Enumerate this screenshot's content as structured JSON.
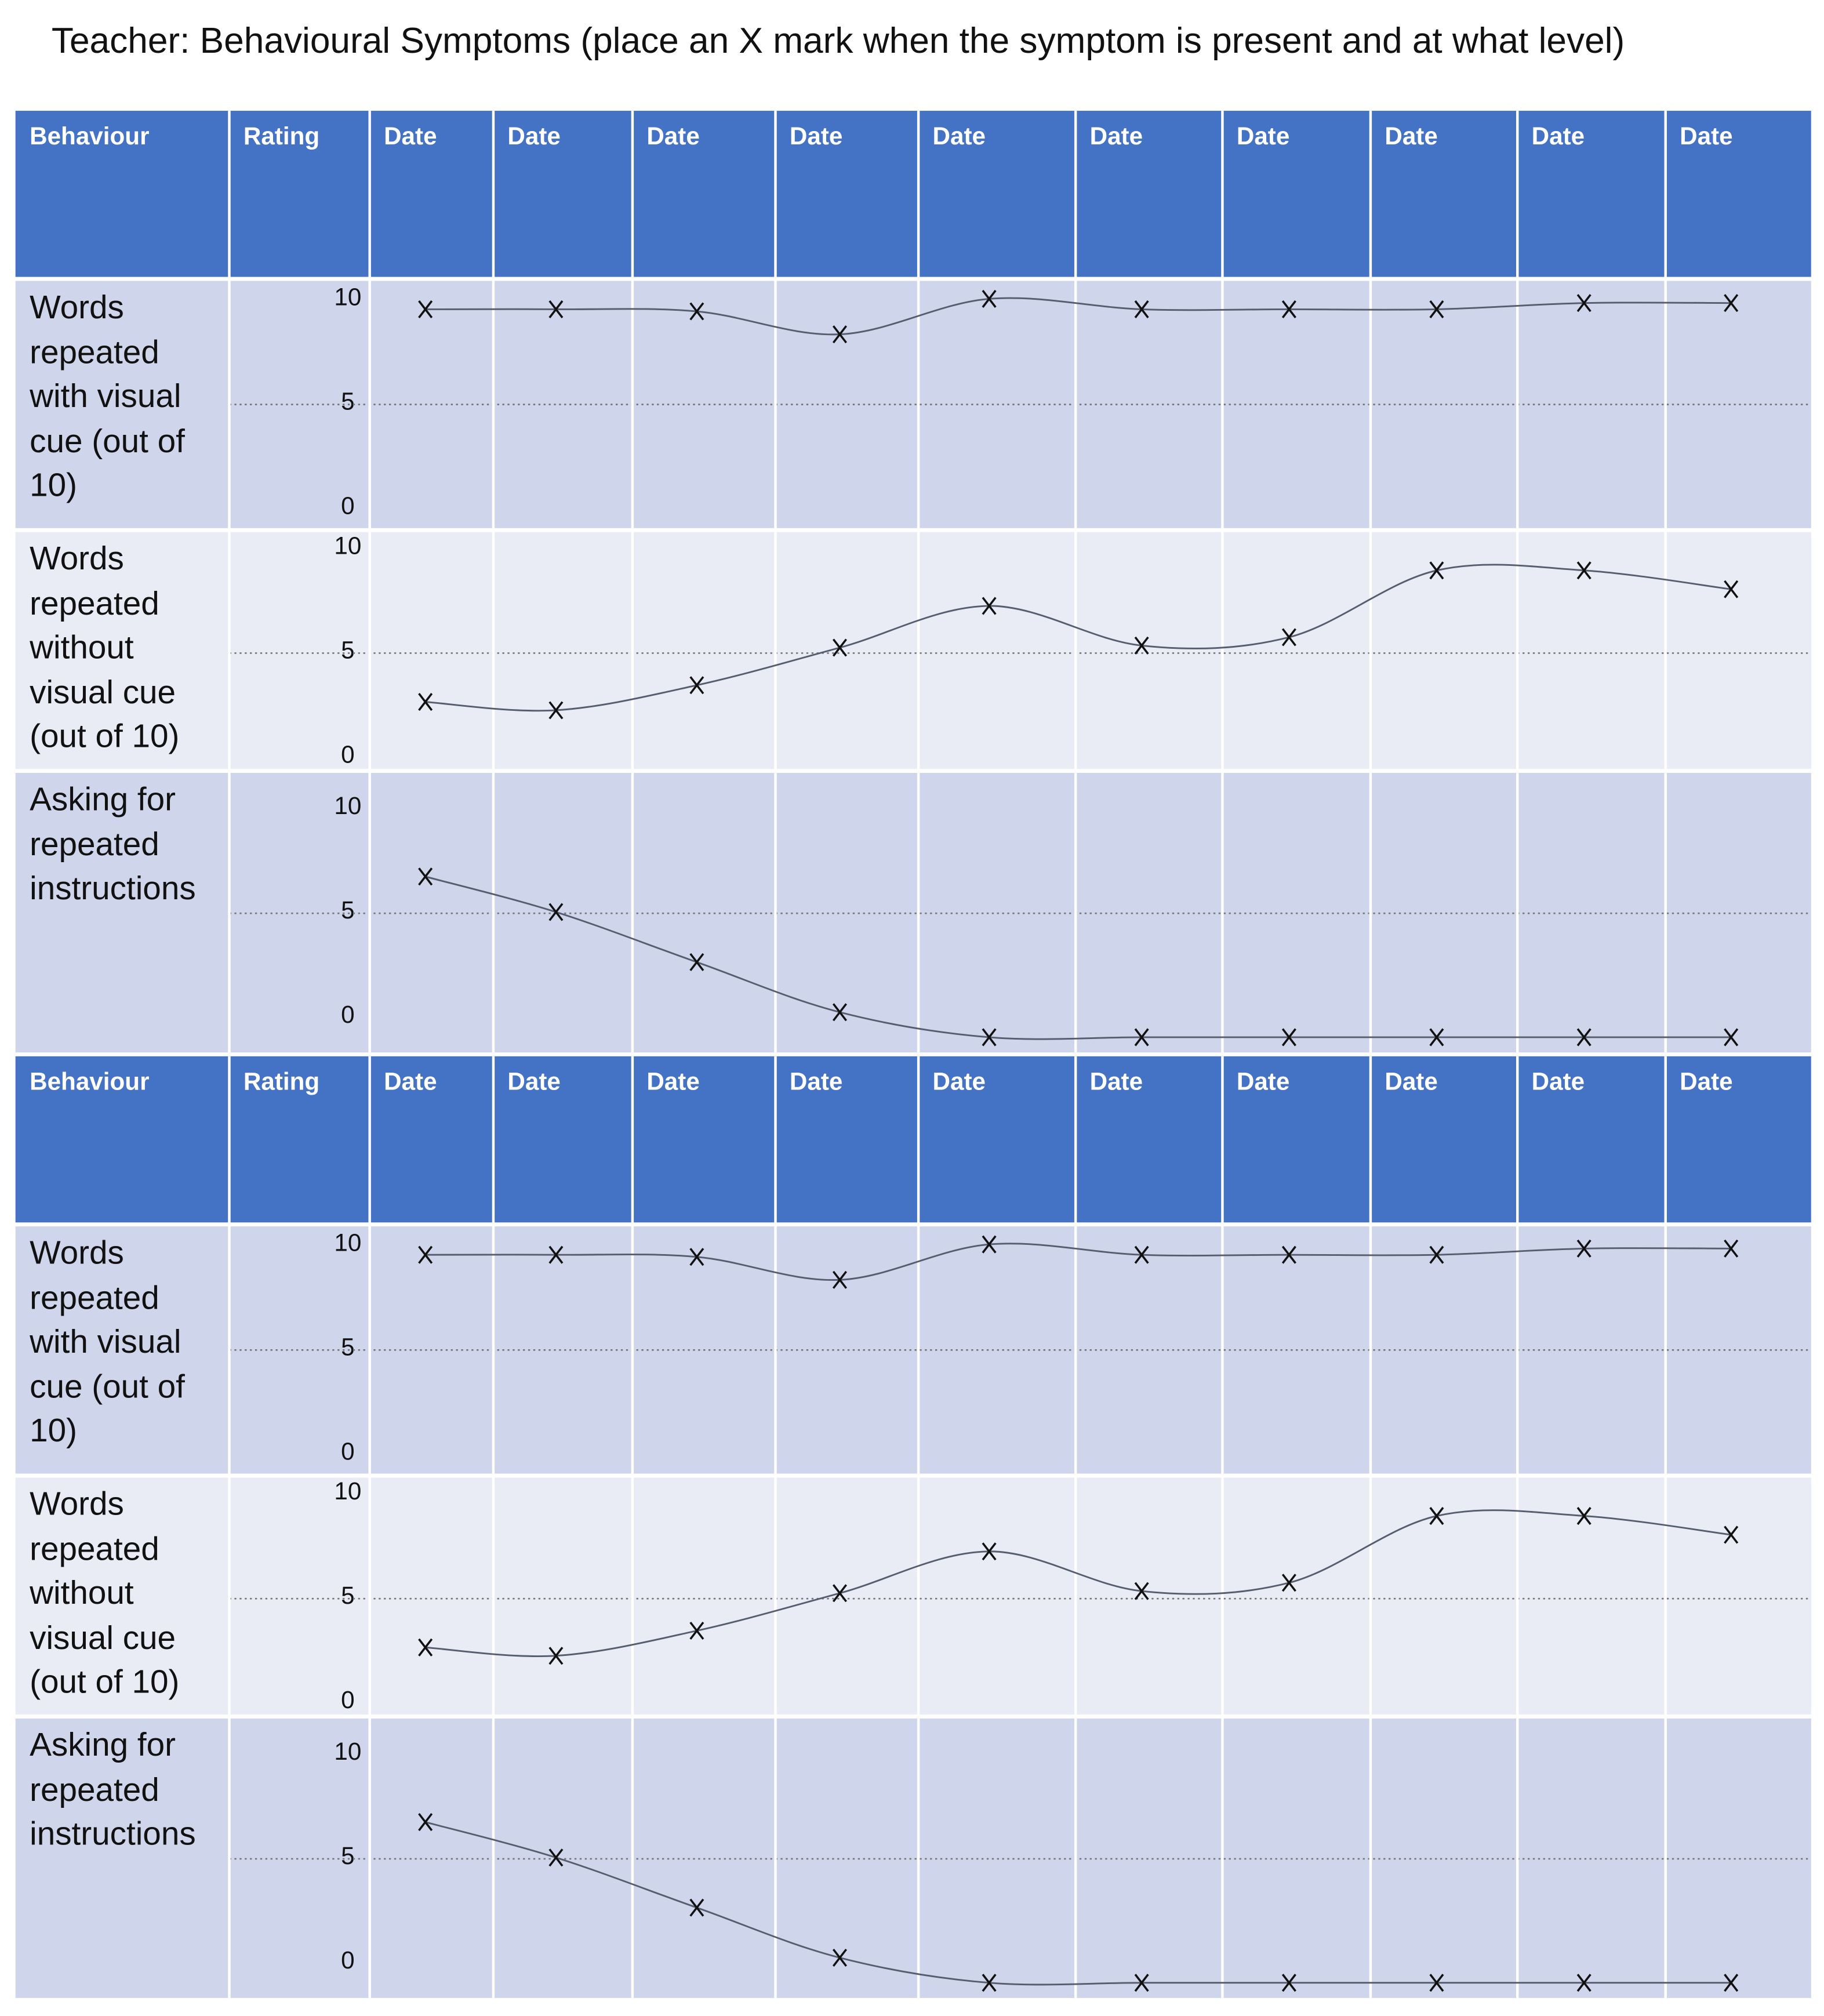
{
  "title": "Teacher: Behavioural Symptoms (place an X  mark when the symptom is present and at what level)",
  "tables": [
    {
      "header": [
        "Behaviour",
        "Rating",
        "Date",
        "Date",
        "Date",
        "Date",
        "Date",
        "Date",
        "Date",
        "Date",
        "Date",
        "Date"
      ],
      "rows": [
        {
          "label": "Words repeated with visual cue (out of 10)",
          "ticks": [
            10,
            5,
            0
          ],
          "values": [
            9.5,
            9.5,
            9.4,
            8.3,
            10,
            9.5,
            9.5,
            9.5,
            9.8,
            9.8
          ]
        },
        {
          "label": "Words repeated without visual cue (out of 10)",
          "ticks": [
            10,
            5,
            0
          ],
          "values": [
            2.6,
            2.2,
            3.4,
            5.2,
            7.2,
            5.3,
            5.7,
            8.9,
            8.9,
            8.0
          ]
        },
        {
          "label": "Asking for repeated instructions",
          "ticks": [
            10,
            5,
            0
          ],
          "values": [
            6.7,
            5.0,
            2.6,
            0.2,
            -1.0,
            -1.0,
            -1.0,
            -1.0,
            -1.0,
            -1.0
          ]
        }
      ]
    },
    {
      "header": [
        "Behaviour",
        "Rating",
        "Date",
        "Date",
        "Date",
        "Date",
        "Date",
        "Date",
        "Date",
        "Date",
        "Date",
        "Date"
      ],
      "rows": [
        {
          "label": "Words repeated with visual cue (out of 10)",
          "ticks": [
            10,
            5,
            0
          ],
          "values": [
            9.5,
            9.5,
            9.4,
            8.3,
            10,
            9.5,
            9.5,
            9.5,
            9.8,
            9.8
          ]
        },
        {
          "label": "Words repeated without visual cue (out of 10)",
          "ticks": [
            10,
            5,
            0
          ],
          "values": [
            2.6,
            2.2,
            3.4,
            5.2,
            7.2,
            5.3,
            5.7,
            8.9,
            8.9,
            8.0
          ]
        },
        {
          "label": "Asking for repeated instructions",
          "ticks": [
            10,
            5,
            0
          ],
          "values": [
            6.7,
            5.0,
            2.6,
            0.2,
            -1.0,
            -1.0,
            -1.0,
            -1.0,
            -1.0,
            -1.0
          ]
        }
      ]
    }
  ]
}
